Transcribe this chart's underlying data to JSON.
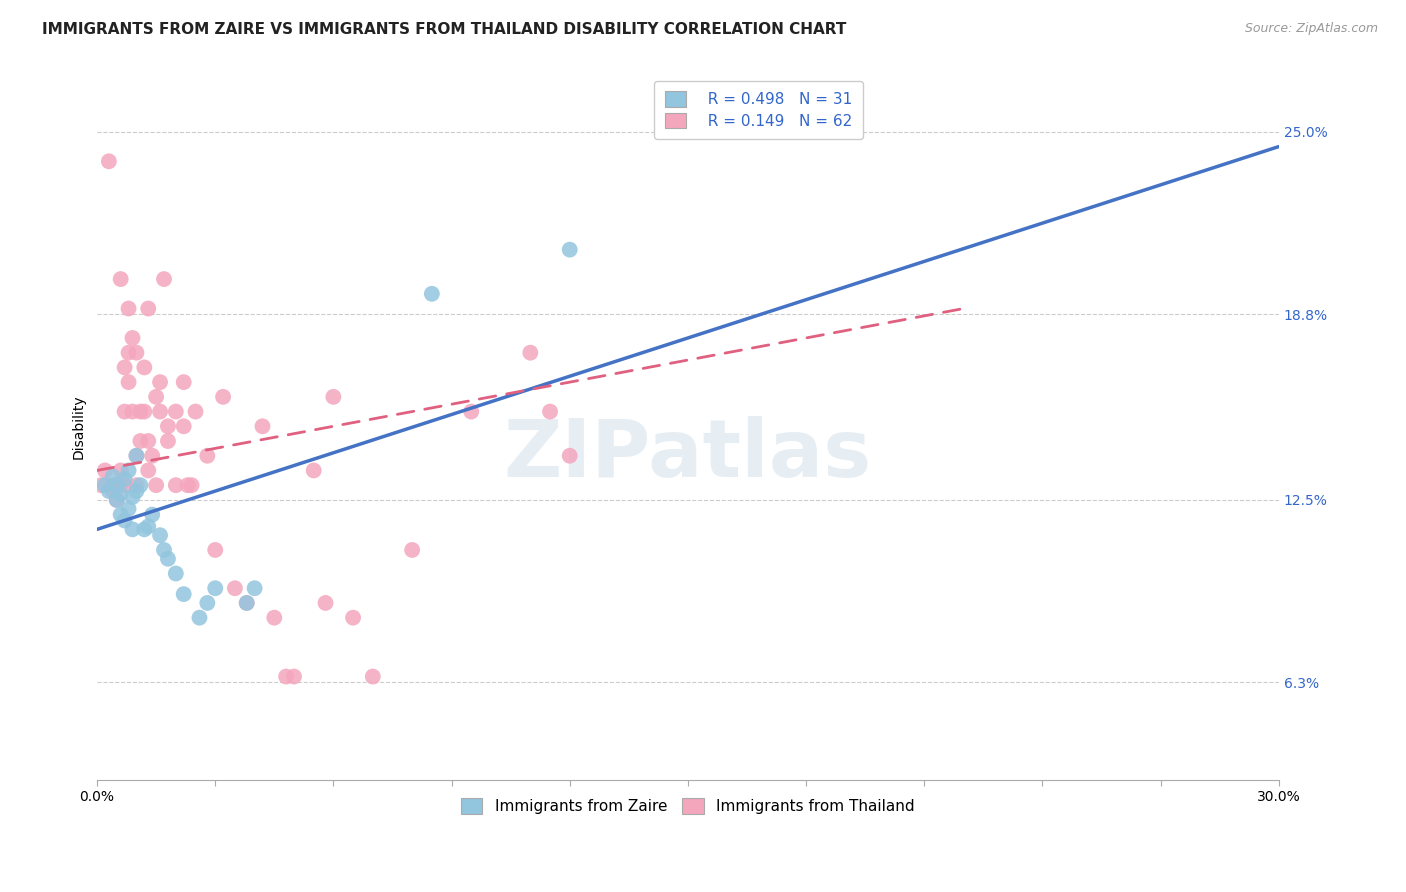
{
  "title": "IMMIGRANTS FROM ZAIRE VS IMMIGRANTS FROM THAILAND DISABILITY CORRELATION CHART",
  "source": "Source: ZipAtlas.com",
  "ylabel": "Disability",
  "xlim": [
    0.0,
    0.3
  ],
  "ylim": [
    0.03,
    0.27
  ],
  "ytick_positions": [
    0.063,
    0.125,
    0.188,
    0.25
  ],
  "ytick_labels": [
    "6.3%",
    "12.5%",
    "18.8%",
    "25.0%"
  ],
  "legend_r1": "R = 0.498",
  "legend_n1": "N = 31",
  "legend_r2": "R = 0.149",
  "legend_n2": "N = 62",
  "legend_label1": "Immigrants from Zaire",
  "legend_label2": "Immigrants from Thailand",
  "color_blue": "#92c5de",
  "color_pink": "#f4a6bd",
  "color_blue_line": "#4472c4",
  "color_pink_line": "#e06080",
  "color_legend_text": "#3366cc",
  "watermark_text": "ZIPatlas",
  "blue_x": [
    0.002,
    0.003,
    0.004,
    0.005,
    0.005,
    0.006,
    0.006,
    0.007,
    0.007,
    0.008,
    0.008,
    0.009,
    0.009,
    0.01,
    0.01,
    0.011,
    0.012,
    0.013,
    0.014,
    0.016,
    0.017,
    0.018,
    0.02,
    0.022,
    0.026,
    0.028,
    0.03,
    0.038,
    0.04,
    0.085,
    0.12
  ],
  "blue_y": [
    0.13,
    0.128,
    0.133,
    0.13,
    0.125,
    0.127,
    0.12,
    0.132,
    0.118,
    0.135,
    0.122,
    0.126,
    0.115,
    0.14,
    0.128,
    0.13,
    0.115,
    0.116,
    0.12,
    0.113,
    0.108,
    0.105,
    0.1,
    0.093,
    0.085,
    0.09,
    0.095,
    0.09,
    0.095,
    0.195,
    0.21
  ],
  "pink_x": [
    0.001,
    0.002,
    0.003,
    0.004,
    0.004,
    0.005,
    0.005,
    0.006,
    0.006,
    0.006,
    0.007,
    0.007,
    0.007,
    0.008,
    0.008,
    0.008,
    0.009,
    0.009,
    0.01,
    0.01,
    0.01,
    0.011,
    0.011,
    0.012,
    0.012,
    0.013,
    0.013,
    0.013,
    0.014,
    0.015,
    0.015,
    0.016,
    0.016,
    0.017,
    0.018,
    0.018,
    0.02,
    0.02,
    0.022,
    0.022,
    0.023,
    0.024,
    0.025,
    0.028,
    0.03,
    0.032,
    0.035,
    0.038,
    0.042,
    0.045,
    0.048,
    0.05,
    0.055,
    0.058,
    0.06,
    0.065,
    0.07,
    0.08,
    0.095,
    0.11,
    0.115,
    0.12
  ],
  "pink_y": [
    0.13,
    0.135,
    0.24,
    0.13,
    0.128,
    0.13,
    0.125,
    0.13,
    0.135,
    0.2,
    0.155,
    0.17,
    0.13,
    0.175,
    0.19,
    0.165,
    0.155,
    0.18,
    0.13,
    0.14,
    0.175,
    0.155,
    0.145,
    0.17,
    0.155,
    0.145,
    0.135,
    0.19,
    0.14,
    0.13,
    0.16,
    0.155,
    0.165,
    0.2,
    0.145,
    0.15,
    0.13,
    0.155,
    0.15,
    0.165,
    0.13,
    0.13,
    0.155,
    0.14,
    0.108,
    0.16,
    0.095,
    0.09,
    0.15,
    0.085,
    0.065,
    0.065,
    0.135,
    0.09,
    0.16,
    0.085,
    0.065,
    0.108,
    0.155,
    0.175,
    0.155,
    0.14
  ],
  "blue_line_x": [
    0.0,
    0.3
  ],
  "blue_line_y": [
    0.115,
    0.245
  ],
  "pink_line_x": [
    0.0,
    0.22
  ],
  "pink_line_y": [
    0.135,
    0.19
  ],
  "grid_color": "#cccccc",
  "background_color": "#ffffff",
  "title_fontsize": 11,
  "axis_label_fontsize": 10,
  "tick_fontsize": 10
}
